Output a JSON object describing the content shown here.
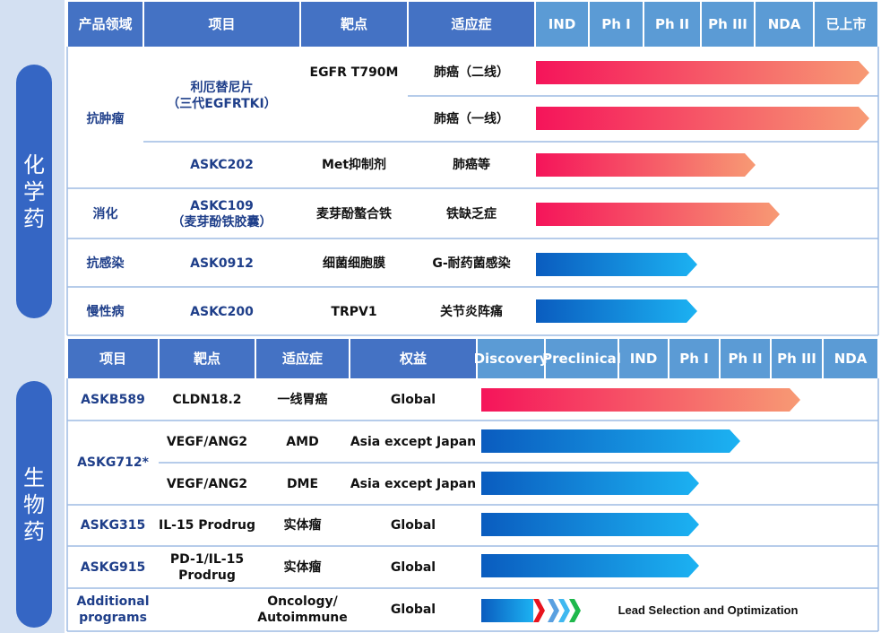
{
  "chemical": {
    "label": "化学药",
    "columns": [
      "产品领域",
      "项目",
      "靶点",
      "适应症"
    ],
    "stages": [
      "IND",
      "Ph I",
      "Ph II",
      "Ph III",
      "NDA",
      "已上市"
    ],
    "areas": [
      [
        "抗肿瘤"
      ],
      [
        "消化"
      ],
      [
        "抗感染"
      ],
      [
        "慢性病"
      ]
    ],
    "projects": [
      [
        "利厄替尼片",
        "（三代EGFRTKI）"
      ],
      [
        "ASKC202"
      ],
      [
        "ASKC109",
        "（麦芽酚铁胶囊）"
      ],
      [
        "ASK0912"
      ],
      [
        "ASKC200"
      ]
    ],
    "targets": [
      [
        "EGFR T790M"
      ],
      [
        "Met抑制剂"
      ],
      [
        "麦芽酚螯合铁"
      ],
      [
        "细菌细胞膜"
      ],
      [
        "TRPV1"
      ]
    ],
    "indications": [
      [
        "肺癌（二线）"
      ],
      [
        "肺癌（一线）"
      ],
      [
        "肺癌等"
      ],
      [
        "铁缺乏症"
      ],
      [
        "G-耐药菌感染"
      ],
      [
        "关节炎阵痛"
      ]
    ]
  },
  "biologic": {
    "label": "生物药",
    "columns": [
      "项目",
      "靶点",
      "适应症",
      "权益"
    ],
    "stages": [
      "Discovery",
      "Preclinical",
      "IND",
      "Ph I",
      "Ph II",
      "Ph III",
      "NDA"
    ],
    "projects": [
      [
        "ASKB589"
      ],
      [
        "ASKG712*"
      ],
      [
        "ASKG315"
      ],
      [
        "ASKG915"
      ],
      [
        "Additional programs"
      ]
    ],
    "targets": [
      [
        "CLDN18.2"
      ],
      [
        "VEGF/ANG2"
      ],
      [
        "VEGF/ANG2"
      ],
      [
        "IL-15 Prodrug"
      ],
      [
        "PD-1/IL-15",
        "Prodrug"
      ]
    ],
    "indications": [
      [
        "一线胃癌"
      ],
      [
        "AMD"
      ],
      [
        "DME"
      ],
      [
        "实体瘤"
      ],
      [
        "实体瘤"
      ],
      [
        "Oncology/",
        "Autoimmune"
      ]
    ],
    "rights": [
      [
        "Global"
      ],
      [
        "Asia except Japan"
      ],
      [
        "Asia except Japan"
      ],
      [
        "Global"
      ],
      [
        "Global"
      ],
      [
        "Global"
      ]
    ],
    "note": "Lead Selection and Optimization"
  }
}
